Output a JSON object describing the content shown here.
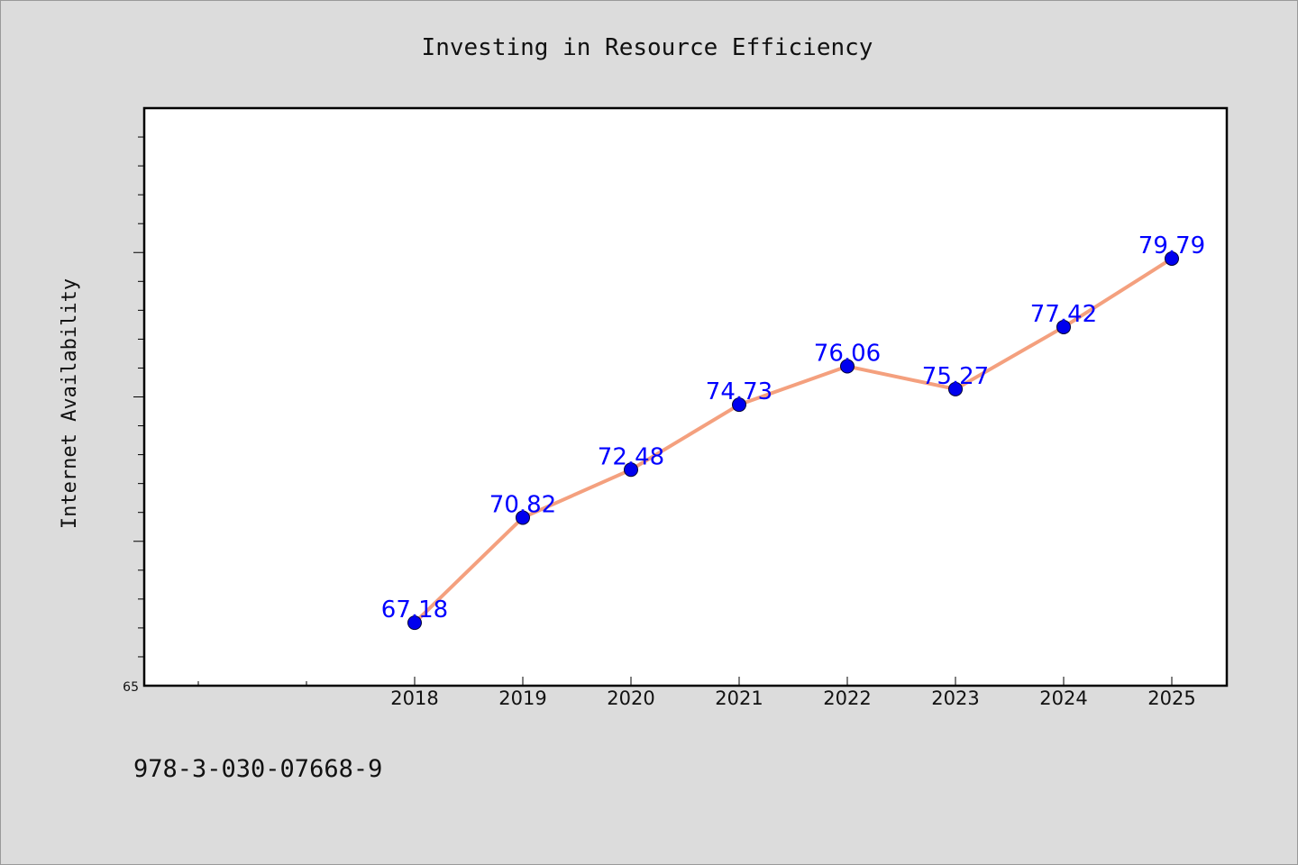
{
  "chart_data": {
    "type": "line",
    "title": "Investing in Resource Efficiency",
    "xlabel": "",
    "ylabel": "Internet Availability",
    "categories": [
      "2018",
      "2019",
      "2020",
      "2021",
      "2022",
      "2023",
      "2024",
      "2025"
    ],
    "values": [
      67.18,
      70.82,
      72.48,
      74.73,
      76.06,
      75.27,
      77.42,
      79.79
    ],
    "data_labels": [
      "67.18",
      "70.82",
      "72.48",
      "74.73",
      "76.06",
      "75.27",
      "77.42",
      "79.79"
    ],
    "y_tick_labels": [
      "65"
    ],
    "ylim": [
      65,
      85
    ],
    "grid": false,
    "legend": "none",
    "line_color": "#f4a07e",
    "marker_color": "#0000ee",
    "label_color": "#0000ff"
  },
  "footer": {
    "isbn": "978-3-030-07668-9"
  }
}
